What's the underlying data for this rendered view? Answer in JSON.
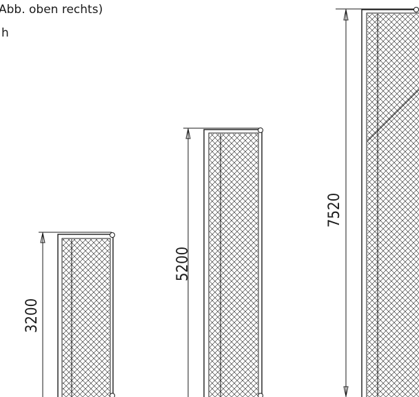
{
  "caption": {
    "line_1": "Abb. oben rechts)",
    "line_2": "h"
  },
  "panels": [
    {
      "id": "panel-small",
      "height_label": "3200"
    },
    {
      "id": "panel-medium",
      "height_label": "5200"
    },
    {
      "id": "panel-large",
      "height_label": "7520"
    }
  ],
  "colors": {
    "stroke": "#1a1a1a",
    "mesh": "#1a1a1a",
    "background": "#ffffff"
  }
}
